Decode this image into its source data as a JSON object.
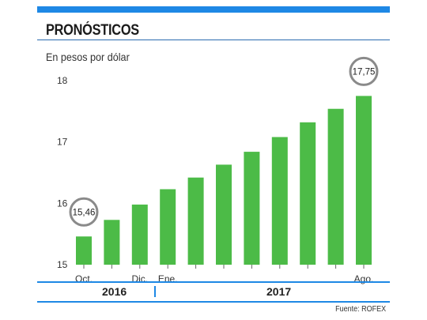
{
  "header": {
    "title": "PRONÓSTICOS",
    "unit_label": "En pesos por dólar"
  },
  "colors": {
    "bar": "#4cbb47",
    "accent": "#1e88e5",
    "callout_ring": "#8a8a8a"
  },
  "chart_data": {
    "type": "bar",
    "title": "PRONÓSTICOS",
    "ylabel": "En pesos por dólar",
    "xlabel": "",
    "ylim": [
      15,
      18
    ],
    "yticks": [
      15,
      16,
      17,
      18
    ],
    "categories": [
      "Oct.",
      "",
      "Dic.",
      "Ene.",
      "",
      "",
      "",
      "",
      "",
      "",
      "Ago."
    ],
    "values": [
      15.46,
      15.73,
      15.98,
      16.23,
      16.42,
      16.63,
      16.84,
      17.08,
      17.32,
      17.54,
      17.75
    ],
    "data_labels": [
      {
        "index": 0,
        "text": "15,46"
      },
      {
        "index": 10,
        "text": "17,75"
      }
    ],
    "year_groups": [
      {
        "label": "2016",
        "from": 0,
        "to": 2
      },
      {
        "label": "2017",
        "from": 3,
        "to": 10
      }
    ],
    "grid": false,
    "legend": "none"
  },
  "footer": {
    "source": "Fuente: ROFEX"
  }
}
